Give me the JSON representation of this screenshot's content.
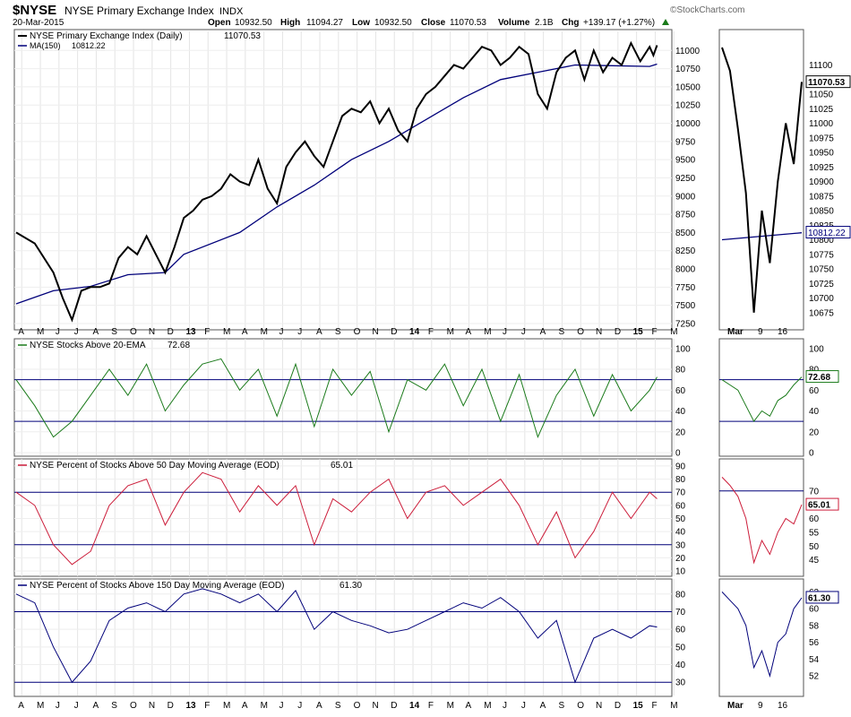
{
  "header": {
    "symbol": "$NYSE",
    "name": "NYSE Primary Exchange Index",
    "exchange": "INDX",
    "date": "20-Mar-2015",
    "brand": "©StockCharts.com",
    "open_label": "Open",
    "open": "10932.50",
    "high_label": "High",
    "high": "11094.27",
    "low_label": "Low",
    "low": "10932.50",
    "close_label": "Close",
    "close": "11070.53",
    "volume_label": "Volume",
    "volume": "2.1B",
    "chg_label": "Chg",
    "chg": "+139.17 (+1.27%)"
  },
  "x_axis": {
    "months": [
      "A",
      "M",
      "J",
      "J",
      "A",
      "S",
      "O",
      "N",
      "D",
      "13",
      "F",
      "M",
      "A",
      "M",
      "J",
      "J",
      "A",
      "S",
      "O",
      "N",
      "D",
      "14",
      "F",
      "M",
      "A",
      "M",
      "J",
      "J",
      "A",
      "S",
      "O",
      "N",
      "D",
      "15",
      "F",
      "M"
    ],
    "bold_labels": [
      "13",
      "14",
      "15"
    ],
    "zoom_labels": [
      "Mar",
      "9",
      "16"
    ]
  },
  "chart_data": [
    {
      "type": "line",
      "title": "NYSE Primary Exchange Index (Daily)",
      "last_value": "11070.53",
      "ylim": [
        7200,
        11200
      ],
      "yticks": [
        7250,
        7500,
        7750,
        8000,
        8250,
        8500,
        8750,
        9000,
        9250,
        9500,
        9750,
        10000,
        10250,
        10500,
        10750,
        11000
      ],
      "series": [
        {
          "name": "NYSE Primary Exchange Index (Daily)",
          "color": "#000000",
          "points": [
            [
              0,
              8500
            ],
            [
              1,
              8350
            ],
            [
              2,
              7950
            ],
            [
              2.5,
              7600
            ],
            [
              3,
              7300
            ],
            [
              3.5,
              7700
            ],
            [
              4,
              7750
            ],
            [
              4.5,
              7750
            ],
            [
              5,
              7800
            ],
            [
              5.5,
              8150
            ],
            [
              6,
              8300
            ],
            [
              6.5,
              8200
            ],
            [
              7,
              8450
            ],
            [
              7.5,
              8200
            ],
            [
              8,
              7950
            ],
            [
              8.5,
              8300
            ],
            [
              9,
              8700
            ],
            [
              9.5,
              8800
            ],
            [
              10,
              8950
            ],
            [
              10.5,
              9000
            ],
            [
              11,
              9100
            ],
            [
              11.5,
              9300
            ],
            [
              12,
              9200
            ],
            [
              12.5,
              9150
            ],
            [
              13,
              9500
            ],
            [
              13.5,
              9100
            ],
            [
              14,
              8900
            ],
            [
              14.5,
              9400
            ],
            [
              15,
              9600
            ],
            [
              15.5,
              9750
            ],
            [
              16,
              9550
            ],
            [
              16.5,
              9400
            ],
            [
              17,
              9750
            ],
            [
              17.5,
              10100
            ],
            [
              18,
              10200
            ],
            [
              18.5,
              10150
            ],
            [
              19,
              10300
            ],
            [
              19.5,
              10000
            ],
            [
              20,
              10200
            ],
            [
              20.5,
              9900
            ],
            [
              21,
              9750
            ],
            [
              21.5,
              10200
            ],
            [
              22,
              10400
            ],
            [
              22.5,
              10500
            ],
            [
              23,
              10650
            ],
            [
              23.5,
              10800
            ],
            [
              24,
              10750
            ],
            [
              24.5,
              10900
            ],
            [
              25,
              11050
            ],
            [
              25.5,
              11000
            ],
            [
              26,
              10800
            ],
            [
              26.5,
              10900
            ],
            [
              27,
              11050
            ],
            [
              27.5,
              10950
            ],
            [
              28,
              10400
            ],
            [
              28.5,
              10200
            ],
            [
              29,
              10700
            ],
            [
              29.5,
              10900
            ],
            [
              30,
              11000
            ],
            [
              30.5,
              10600
            ],
            [
              31,
              11000
            ],
            [
              31.5,
              10700
            ],
            [
              32,
              10900
            ],
            [
              32.5,
              10800
            ],
            [
              33,
              11100
            ],
            [
              33.5,
              10850
            ],
            [
              34,
              11050
            ],
            [
              34.2,
              10933
            ],
            [
              34.4,
              11071
            ]
          ]
        },
        {
          "name": "MA(150)",
          "last_value": "10812.22",
          "color": "#00007a",
          "points": [
            [
              0,
              7520
            ],
            [
              2,
              7700
            ],
            [
              4,
              7760
            ],
            [
              6,
              7920
            ],
            [
              8,
              7950
            ],
            [
              9,
              8200
            ],
            [
              12,
              8500
            ],
            [
              14,
              8850
            ],
            [
              16,
              9150
            ],
            [
              18,
              9500
            ],
            [
              20,
              9750
            ],
            [
              22,
              10050
            ],
            [
              24,
              10350
            ],
            [
              26,
              10600
            ],
            [
              28,
              10700
            ],
            [
              30,
              10800
            ],
            [
              32,
              10790
            ],
            [
              34,
              10780
            ],
            [
              34.4,
              10812
            ]
          ]
        }
      ],
      "zoom": {
        "ylim": [
          10650,
          11150
        ],
        "yticks": [
          10675,
          10700,
          10725,
          10750,
          10775,
          10800,
          10825,
          10850,
          10875,
          10900,
          10925,
          10950,
          10975,
          11000,
          11025,
          11050,
          11075,
          11100
        ],
        "price": [
          [
            0,
            11130
          ],
          [
            1,
            11090
          ],
          [
            2,
            10990
          ],
          [
            3,
            10880
          ],
          [
            4,
            10675
          ],
          [
            5,
            10850
          ],
          [
            6,
            10760
          ],
          [
            7,
            10900
          ],
          [
            8,
            11000
          ],
          [
            9,
            10930
          ],
          [
            10,
            11071
          ]
        ],
        "ma": [
          [
            0,
            10800
          ],
          [
            10,
            10812
          ]
        ]
      }
    },
    {
      "type": "line",
      "title": "NYSE Stocks Above 20-EMA",
      "last_value": "72.68",
      "color": "#1a7a1a",
      "ylim": [
        0,
        105
      ],
      "yticks": [
        0,
        20,
        40,
        60,
        80,
        100
      ],
      "reference_lines": [
        70,
        30
      ],
      "points": [
        [
          0,
          70
        ],
        [
          1,
          45
        ],
        [
          2,
          15
        ],
        [
          3,
          30
        ],
        [
          4,
          55
        ],
        [
          5,
          80
        ],
        [
          6,
          55
        ],
        [
          7,
          85
        ],
        [
          8,
          40
        ],
        [
          9,
          65
        ],
        [
          10,
          85
        ],
        [
          11,
          90
        ],
        [
          12,
          60
        ],
        [
          13,
          80
        ],
        [
          14,
          35
        ],
        [
          15,
          85
        ],
        [
          16,
          25
        ],
        [
          17,
          80
        ],
        [
          18,
          55
        ],
        [
          19,
          78
        ],
        [
          20,
          20
        ],
        [
          21,
          70
        ],
        [
          22,
          60
        ],
        [
          23,
          85
        ],
        [
          24,
          45
        ],
        [
          25,
          80
        ],
        [
          26,
          30
        ],
        [
          27,
          75
        ],
        [
          28,
          15
        ],
        [
          29,
          55
        ],
        [
          30,
          80
        ],
        [
          31,
          35
        ],
        [
          32,
          75
        ],
        [
          33,
          40
        ],
        [
          34,
          60
        ],
        [
          34.4,
          72.68
        ]
      ],
      "zoom": {
        "ylim": [
          0,
          105
        ],
        "yticks": [
          0,
          20,
          40,
          60,
          80,
          100
        ],
        "points": [
          [
            0,
            70
          ],
          [
            1,
            65
          ],
          [
            2,
            60
          ],
          [
            3,
            45
          ],
          [
            4,
            30
          ],
          [
            5,
            40
          ],
          [
            6,
            35
          ],
          [
            7,
            50
          ],
          [
            8,
            55
          ],
          [
            9,
            65
          ],
          [
            10,
            72.68
          ]
        ]
      }
    },
    {
      "type": "line",
      "title": "NYSE Percent of Stocks Above 50 Day Moving Average (EOD)",
      "last_value": "65.01",
      "color": "#cc1d3a",
      "ylim": [
        8,
        92
      ],
      "yticks": [
        10,
        20,
        30,
        40,
        50,
        60,
        70,
        80,
        90
      ],
      "reference_lines": [
        70,
        30
      ],
      "points": [
        [
          0,
          70
        ],
        [
          1,
          60
        ],
        [
          2,
          30
        ],
        [
          3,
          15
        ],
        [
          4,
          25
        ],
        [
          5,
          60
        ],
        [
          6,
          75
        ],
        [
          7,
          80
        ],
        [
          8,
          45
        ],
        [
          9,
          70
        ],
        [
          10,
          85
        ],
        [
          11,
          80
        ],
        [
          12,
          55
        ],
        [
          13,
          75
        ],
        [
          14,
          60
        ],
        [
          15,
          75
        ],
        [
          16,
          30
        ],
        [
          17,
          65
        ],
        [
          18,
          55
        ],
        [
          19,
          70
        ],
        [
          20,
          80
        ],
        [
          21,
          50
        ],
        [
          22,
          70
        ],
        [
          23,
          75
        ],
        [
          24,
          60
        ],
        [
          25,
          70
        ],
        [
          26,
          80
        ],
        [
          27,
          60
        ],
        [
          28,
          30
        ],
        [
          29,
          55
        ],
        [
          30,
          20
        ],
        [
          31,
          40
        ],
        [
          32,
          70
        ],
        [
          33,
          50
        ],
        [
          34,
          70
        ],
        [
          34.4,
          65.01
        ]
      ],
      "zoom": {
        "ylim": [
          40,
          80
        ],
        "yticks": [
          45,
          50,
          55,
          60,
          65,
          70
        ],
        "points": [
          [
            0,
            75
          ],
          [
            1,
            72
          ],
          [
            2,
            68
          ],
          [
            3,
            60
          ],
          [
            4,
            44
          ],
          [
            5,
            52
          ],
          [
            6,
            47
          ],
          [
            7,
            55
          ],
          [
            8,
            60
          ],
          [
            9,
            58
          ],
          [
            10,
            65.01
          ]
        ]
      }
    },
    {
      "type": "line",
      "title": "NYSE Percent of Stocks Above 150 Day Moving Average (EOD)",
      "last_value": "61.30",
      "color": "#00007a",
      "ylim": [
        24,
        86
      ],
      "yticks": [
        30,
        40,
        50,
        60,
        70,
        80
      ],
      "reference_lines": [
        70,
        30
      ],
      "points": [
        [
          0,
          80
        ],
        [
          1,
          75
        ],
        [
          2,
          50
        ],
        [
          3,
          30
        ],
        [
          4,
          42
        ],
        [
          5,
          65
        ],
        [
          6,
          72
        ],
        [
          7,
          75
        ],
        [
          8,
          70
        ],
        [
          9,
          80
        ],
        [
          10,
          83
        ],
        [
          11,
          80
        ],
        [
          12,
          75
        ],
        [
          13,
          80
        ],
        [
          14,
          70
        ],
        [
          15,
          82
        ],
        [
          16,
          60
        ],
        [
          17,
          70
        ],
        [
          18,
          65
        ],
        [
          19,
          62
        ],
        [
          20,
          58
        ],
        [
          21,
          60
        ],
        [
          22,
          65
        ],
        [
          23,
          70
        ],
        [
          24,
          75
        ],
        [
          25,
          72
        ],
        [
          26,
          78
        ],
        [
          27,
          70
        ],
        [
          28,
          55
        ],
        [
          29,
          65
        ],
        [
          30,
          30
        ],
        [
          31,
          55
        ],
        [
          32,
          60
        ],
        [
          33,
          55
        ],
        [
          34,
          62
        ],
        [
          34.4,
          61.3
        ]
      ],
      "zoom": {
        "ylim": [
          50,
          63
        ],
        "yticks": [
          52,
          54,
          56,
          58,
          60,
          62
        ],
        "points": [
          [
            0,
            62
          ],
          [
            1,
            61
          ],
          [
            2,
            60
          ],
          [
            3,
            58
          ],
          [
            4,
            53
          ],
          [
            5,
            55
          ],
          [
            6,
            52
          ],
          [
            7,
            56
          ],
          [
            8,
            57
          ],
          [
            9,
            60
          ],
          [
            10,
            61.3
          ]
        ]
      }
    }
  ]
}
